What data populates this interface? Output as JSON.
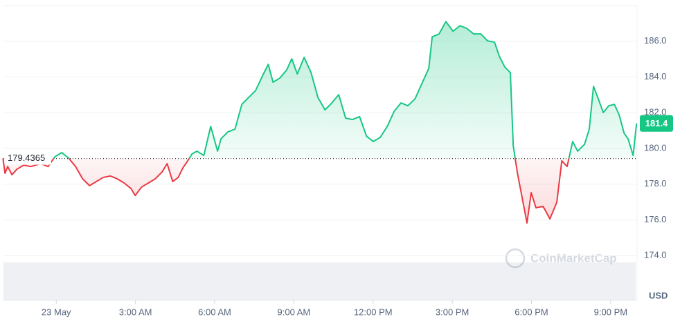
{
  "chart_data": {
    "type": "line",
    "x": [
      -2.02,
      -1.94,
      -1.84,
      -1.68,
      -1.49,
      -1.23,
      -0.97,
      -0.58,
      -0.31,
      -0.05,
      0.21,
      0.47,
      0.73,
      1.0,
      1.26,
      1.52,
      1.78,
      2.05,
      2.31,
      2.57,
      2.83,
      2.99,
      3.23,
      3.49,
      3.75,
      4.01,
      4.2,
      4.41,
      4.62,
      4.8,
      4.98,
      5.14,
      5.33,
      5.59,
      5.85,
      6.11,
      6.24,
      6.5,
      6.77,
      7.03,
      7.29,
      7.55,
      7.82,
      8.03,
      8.21,
      8.47,
      8.73,
      8.92,
      9.13,
      9.39,
      9.65,
      9.91,
      10.18,
      10.44,
      10.7,
      10.96,
      11.22,
      11.49,
      11.75,
      12.01,
      12.27,
      12.54,
      12.8,
      13.06,
      13.32,
      13.59,
      13.85,
      14.11,
      14.24,
      14.5,
      14.76,
      15.03,
      15.29,
      15.55,
      15.81,
      16.08,
      16.34,
      16.6,
      16.78,
      16.99,
      17.2,
      17.31,
      17.47,
      17.65,
      17.83,
      17.99,
      18.17,
      18.44,
      18.7,
      18.96,
      19.15,
      19.35,
      19.56,
      19.75,
      20.01,
      20.19,
      20.35,
      20.53,
      20.72,
      20.93,
      21.14,
      21.32,
      21.51,
      21.66,
      21.85,
      21.98
    ],
    "values": [
      179.44,
      178.61,
      178.99,
      178.53,
      178.84,
      179.07,
      178.99,
      179.15,
      178.99,
      179.54,
      179.77,
      179.46,
      178.99,
      178.3,
      177.92,
      178.15,
      178.38,
      178.46,
      178.3,
      178.07,
      177.76,
      177.37,
      177.84,
      178.07,
      178.3,
      178.69,
      179.15,
      178.15,
      178.38,
      178.92,
      179.31,
      179.69,
      179.85,
      179.61,
      181.24,
      179.85,
      180.54,
      180.93,
      181.08,
      182.47,
      182.86,
      183.24,
      184.09,
      184.71,
      183.71,
      183.94,
      184.4,
      185.02,
      184.17,
      185.1,
      184.25,
      182.86,
      182.16,
      182.55,
      183.01,
      181.7,
      181.62,
      181.78,
      180.69,
      180.39,
      180.62,
      181.24,
      182.08,
      182.55,
      182.39,
      182.78,
      183.63,
      184.48,
      186.25,
      186.41,
      187.1,
      186.56,
      186.87,
      186.72,
      186.41,
      186.41,
      186.02,
      185.95,
      185.17,
      184.56,
      184.25,
      180.15,
      178.61,
      177.22,
      175.83,
      177.53,
      176.68,
      176.76,
      176.06,
      176.99,
      179.31,
      178.99,
      180.39,
      179.85,
      180.23,
      181.08,
      183.48,
      182.78,
      182.01,
      182.39,
      182.47,
      181.89,
      180.85,
      180.54,
      179.61,
      181.4
    ],
    "baseline": 179.4365,
    "color_up": "#16c784",
    "color_down": "#ea3943",
    "xlim": [
      -2,
      22
    ],
    "xticks": [
      {
        "value": 0,
        "label": "23 May"
      },
      {
        "value": 3,
        "label": "3:00 AM"
      },
      {
        "value": 6,
        "label": "6:00 AM"
      },
      {
        "value": 9,
        "label": "9:00 AM"
      },
      {
        "value": 12,
        "label": "12:00 PM"
      },
      {
        "value": 15,
        "label": "3:00 PM"
      },
      {
        "value": 18,
        "label": "6:00 PM"
      },
      {
        "value": 21,
        "label": "9:00 PM"
      }
    ],
    "ylim": [
      171.5,
      188
    ],
    "yticks": [
      {
        "value": 174,
        "label": "174.0"
      },
      {
        "value": 176,
        "label": "176.0"
      },
      {
        "value": 178,
        "label": "178.0"
      },
      {
        "value": 180,
        "label": "180.0"
      },
      {
        "value": 182,
        "label": "182.0"
      },
      {
        "value": 184,
        "label": "184.0"
      },
      {
        "value": 186,
        "label": "186.0"
      }
    ],
    "y_unit": "USD",
    "watermark": "CoinMarketCap",
    "grid": true
  }
}
